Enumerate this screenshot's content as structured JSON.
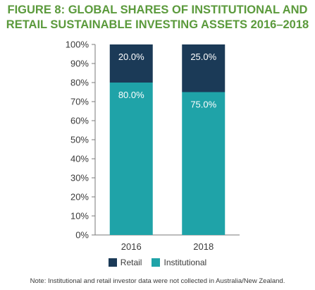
{
  "title_lines": [
    "FIGURE 8: GLOBAL SHARES OF INSTITUTIONAL AND",
    "RETAIL SUSTAINABLE INVESTING ASSETS 2016–2018"
  ],
  "note": "Note: Institutional and retail investor data were not collected in Australia/New Zealand.",
  "colors": {
    "retail": "#1b3a57",
    "institutional": "#1fa3a8",
    "title": "#5b9a3c"
  },
  "chart_data": {
    "type": "bar",
    "stacked": true,
    "title": "FIGURE 8: GLOBAL SHARES OF INSTITUTIONAL AND RETAIL SUSTAINABLE INVESTING ASSETS 2016–2018",
    "xlabel": "",
    "ylabel": "",
    "categories": [
      "2016",
      "2018"
    ],
    "series": [
      {
        "name": "Institutional",
        "values": [
          80.0,
          75.0
        ],
        "labels": [
          "80.0%",
          "75.0%"
        ],
        "color": "#1fa3a8"
      },
      {
        "name": "Retail",
        "values": [
          20.0,
          25.0
        ],
        "labels": [
          "20.0%",
          "25.0%"
        ],
        "color": "#1b3a57"
      }
    ],
    "ylim": [
      0,
      100
    ],
    "yticks": [
      0,
      10,
      20,
      30,
      40,
      50,
      60,
      70,
      80,
      90,
      100
    ],
    "ytick_labels": [
      "0%",
      "10%",
      "20%",
      "30%",
      "40%",
      "50%",
      "60%",
      "70%",
      "80%",
      "90%",
      "100%"
    ],
    "grid": false,
    "legend": {
      "position": "bottom",
      "entries": [
        {
          "name": "Retail",
          "color": "#1b3a57"
        },
        {
          "name": "Institutional",
          "color": "#1fa3a8"
        }
      ]
    }
  }
}
